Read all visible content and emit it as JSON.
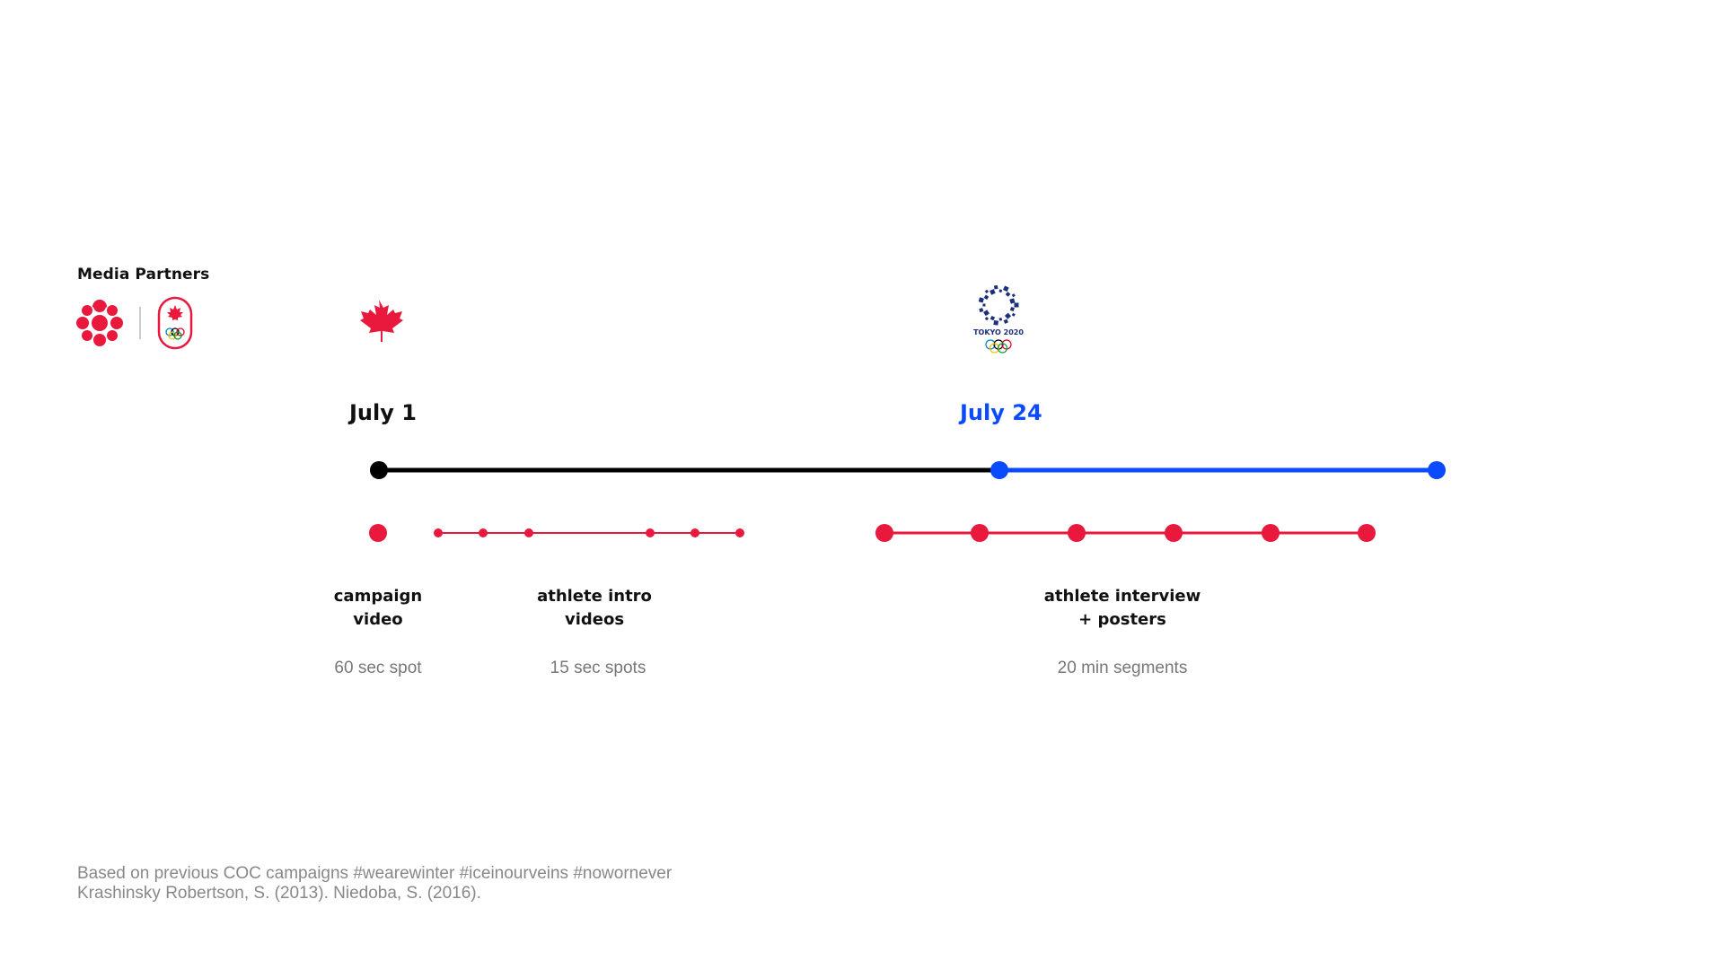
{
  "partners": {
    "heading": "Media Partners",
    "logos": [
      "cbc-gem-logo",
      "team-canada-olympic-logo"
    ]
  },
  "markers": {
    "start": {
      "date": "July 1",
      "icon": "maple-leaf-icon",
      "color": "#111111"
    },
    "games": {
      "date": "July 24",
      "icon": "tokyo-2020-logo",
      "icon_text": "TOKYO 2020",
      "color": "#0a4bff"
    }
  },
  "timeline": {
    "pre_color": "#000000",
    "post_color": "#0a4bff"
  },
  "activities": [
    {
      "title_lines": [
        "campaign",
        "video"
      ],
      "detail": "60 sec spot",
      "color": "#e8193c",
      "points": 1
    },
    {
      "title_lines": [
        "athlete intro",
        "videos"
      ],
      "detail": "15 sec spots",
      "color": "#e8193c",
      "points": 6
    },
    {
      "title_lines": [
        "athlete interview",
        "+ posters"
      ],
      "detail": "20 min segments",
      "color": "#e8193c",
      "points": 6
    }
  ],
  "footnote": {
    "line1": "Based on previous COC campaigns #wearewinter #iceinourveins #nowornever",
    "line2": "Krashinsky Robertson, S. (2013). Niedoba, S. (2016)."
  }
}
